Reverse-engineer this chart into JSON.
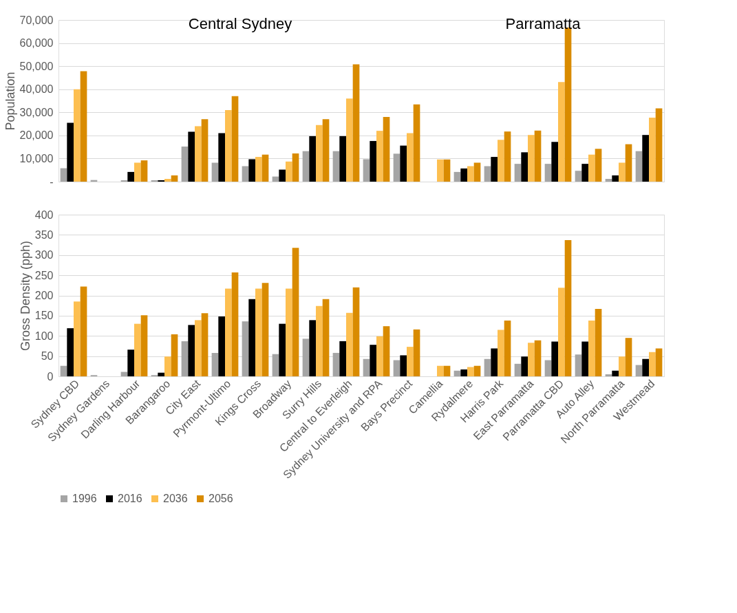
{
  "chart_data": [
    {
      "type": "bar",
      "ylabel": "Population",
      "categories": [
        null,
        null,
        null,
        null,
        null,
        null,
        null,
        null,
        null,
        null,
        null,
        null,
        null,
        null,
        null,
        null,
        null,
        null,
        null,
        null
      ],
      "series": [
        {
          "color": "#a5a5a5",
          "values": [
            5800,
            700,
            600,
            600,
            15200,
            8200,
            6700,
            2200,
            13200,
            13200,
            9700,
            12100,
            0,
            4200,
            6700,
            7700,
            7700,
            4700,
            1200,
            13200
          ]
        },
        {
          "color": "#000000",
          "values": [
            25500,
            0,
            4200,
            600,
            21600,
            21000,
            9700,
            5200,
            19700,
            19700,
            17600,
            15600,
            0,
            5700,
            10700,
            12700,
            17200,
            7700,
            2700,
            20200
          ]
        },
        {
          "color": "#fdbf50",
          "values": [
            40000,
            0,
            8200,
            1200,
            24000,
            31000,
            10700,
            8700,
            24500,
            36000,
            22000,
            21000,
            9600,
            6700,
            18100,
            20200,
            43100,
            11700,
            8200,
            27700
          ]
        },
        {
          "color": "#d98b00",
          "values": [
            47800,
            0,
            9200,
            2700,
            27000,
            37000,
            11700,
            12200,
            27000,
            50800,
            28000,
            33400,
            9600,
            8200,
            21700,
            22100,
            66700,
            14200,
            16200,
            31700
          ]
        }
      ],
      "ylim": [
        0,
        70000
      ],
      "yticks": [
        {
          "value": 0,
          "label": "-"
        },
        {
          "value": 10000,
          "label": "10,000"
        },
        {
          "value": 20000,
          "label": "20,000"
        },
        {
          "value": 30000,
          "label": "30,000"
        },
        {
          "value": 40000,
          "label": "40,000"
        },
        {
          "value": 50000,
          "label": "50,000"
        },
        {
          "value": 60000,
          "label": "60,000"
        },
        {
          "value": 70000,
          "label": "70,000"
        }
      ],
      "grid": "y",
      "legend": false,
      "tick_labels": "y",
      "annotations": [
        "Central Sydney",
        "Parramatta"
      ]
    },
    {
      "type": "bar",
      "ylabel": "Gross Density (pph)",
      "categories": [
        "Sydney CBD",
        "Sydney Gardens",
        "Darling Harbour",
        "Barangaroo",
        "City East",
        "Pyrmont-Ultimo",
        "Kings Cross",
        "Broadway",
        "Surry Hills",
        "Central to Everleigh",
        "Sydney University and RPA",
        "Bays Precinct",
        "Camellia",
        "Rydalmere",
        "Harris Park",
        "East Parramatta",
        "Parramatta CBD",
        "Auto Alley",
        "North Parramatta",
        "Westmead"
      ],
      "series": [
        {
          "name": "1996",
          "color": "#a5a5a5",
          "values": [
            26,
            3,
            11,
            3,
            87,
            58,
            136,
            55,
            93,
            58,
            43,
            40,
            0,
            14,
            43,
            31,
            40,
            54,
            5,
            28
          ]
        },
        {
          "name": "2016",
          "color": "#000000",
          "values": [
            119,
            0,
            66,
            9,
            127,
            148,
            191,
            130,
            139,
            87,
            78,
            52,
            0,
            17,
            69,
            49,
            86,
            86,
            14,
            43
          ]
        },
        {
          "name": "2036",
          "color": "#fdbf50",
          "values": [
            185,
            0,
            130,
            49,
            139,
            217,
            217,
            217,
            174,
            157,
            99,
            73,
            26,
            23,
            115,
            83,
            219,
            138,
            49,
            60
          ]
        },
        {
          "name": "2056",
          "color": "#d98b00",
          "values": [
            222,
            0,
            151,
            104,
            156,
            257,
            231,
            318,
            191,
            220,
            124,
            116,
            26,
            26,
            138,
            89,
            337,
            167,
            95,
            69
          ]
        }
      ],
      "ylim": [
        0,
        400
      ],
      "yticks": [
        0,
        50,
        100,
        150,
        200,
        250,
        300,
        350,
        400
      ],
      "grid": "y",
      "legend": "bottom"
    }
  ]
}
